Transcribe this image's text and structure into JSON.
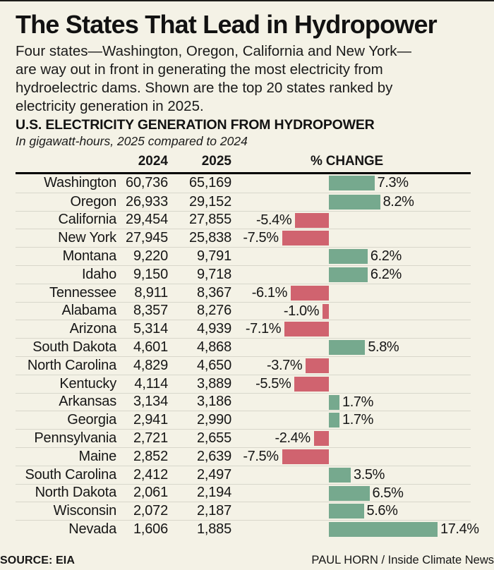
{
  "page": {
    "title": "The States That Lead in Hydropower",
    "description": "Four states—Washington, Oregon, California and New York—\nare way out in front in generating the most electricity from\nhydroelectric dams. Shown are the top 20 states ranked by\nelectricity generation in 2025.",
    "background_color": "#f4f2e6"
  },
  "chart_data": {
    "type": "bar",
    "title": "U.S. ELECTRICITY GENERATION FROM HYDROPOWER",
    "subtitle": "In gigawatt-hours, 2025 compared to 2024",
    "columns": [
      "2024",
      "2025",
      "% CHANGE"
    ],
    "orientation": "horizontal-diverging",
    "positive_color": "#76a98e",
    "negative_color": "#d0636f",
    "pct_axis_range": [
      -8,
      18
    ],
    "rows": [
      {
        "state": "Washington",
        "v2024": "60,736",
        "v2025": "65,169",
        "pct": 7.3,
        "label": "7.3%"
      },
      {
        "state": "Oregon",
        "v2024": "26,933",
        "v2025": "29,152",
        "pct": 8.2,
        "label": "8.2%"
      },
      {
        "state": "California",
        "v2024": "29,454",
        "v2025": "27,855",
        "pct": -5.4,
        "label": "-5.4%"
      },
      {
        "state": "New York",
        "v2024": "27,945",
        "v2025": "25,838",
        "pct": -7.5,
        "label": "-7.5%"
      },
      {
        "state": "Montana",
        "v2024": "9,220",
        "v2025": "9,791",
        "pct": 6.2,
        "label": "6.2%"
      },
      {
        "state": "Idaho",
        "v2024": "9,150",
        "v2025": "9,718",
        "pct": 6.2,
        "label": "6.2%"
      },
      {
        "state": "Tennessee",
        "v2024": "8,911",
        "v2025": "8,367",
        "pct": -6.1,
        "label": "-6.1%"
      },
      {
        "state": "Alabama",
        "v2024": "8,357",
        "v2025": "8,276",
        "pct": -1.0,
        "label": "-1.0%"
      },
      {
        "state": "Arizona",
        "v2024": "5,314",
        "v2025": "4,939",
        "pct": -7.1,
        "label": "-7.1%"
      },
      {
        "state": "South Dakota",
        "v2024": "4,601",
        "v2025": "4,868",
        "pct": 5.8,
        "label": "5.8%"
      },
      {
        "state": "North Carolina",
        "v2024": "4,829",
        "v2025": "4,650",
        "pct": -3.7,
        "label": "-3.7%"
      },
      {
        "state": "Kentucky",
        "v2024": "4,114",
        "v2025": "3,889",
        "pct": -5.5,
        "label": "-5.5%"
      },
      {
        "state": "Arkansas",
        "v2024": "3,134",
        "v2025": "3,186",
        "pct": 1.7,
        "label": "1.7%"
      },
      {
        "state": "Georgia",
        "v2024": "2,941",
        "v2025": "2,990",
        "pct": 1.7,
        "label": "1.7%"
      },
      {
        "state": "Pennsylvania",
        "v2024": "2,721",
        "v2025": "2,655",
        "pct": -2.4,
        "label": "-2.4%"
      },
      {
        "state": "Maine",
        "v2024": "2,852",
        "v2025": "2,639",
        "pct": -7.5,
        "label": "-7.5%"
      },
      {
        "state": "South Carolina",
        "v2024": "2,412",
        "v2025": "2,497",
        "pct": 3.5,
        "label": "3.5%"
      },
      {
        "state": "North Dakota",
        "v2024": "2,061",
        "v2025": "2,194",
        "pct": 6.5,
        "label": "6.5%"
      },
      {
        "state": "Wisconsin",
        "v2024": "2,072",
        "v2025": "2,187",
        "pct": 5.6,
        "label": "5.6%"
      },
      {
        "state": "Nevada",
        "v2024": "1,606",
        "v2025": "1,885",
        "pct": 17.4,
        "label": "17.4%"
      }
    ]
  },
  "footer": {
    "source": "SOURCE: EIA",
    "credit": "PAUL HORN / Inside Climate News"
  }
}
